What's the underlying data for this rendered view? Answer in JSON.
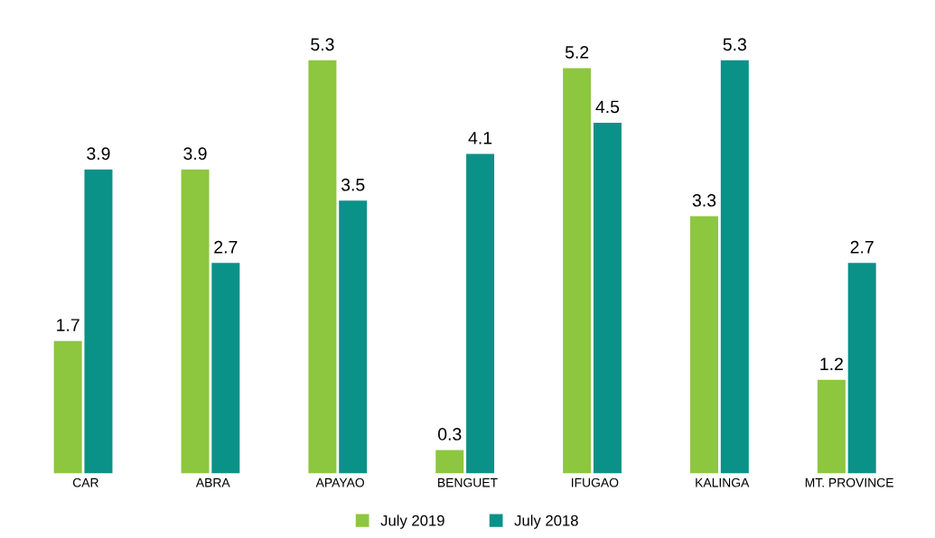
{
  "chart_data": {
    "type": "bar",
    "categories": [
      "CAR",
      "ABRA",
      "APAYAO",
      "BENGUET",
      "IFUGAO",
      "KALINGA",
      "MT. PROVINCE"
    ],
    "series": [
      {
        "name": "July 2019",
        "color": "#8dc63f",
        "values": [
          1.7,
          3.9,
          5.3,
          0.3,
          5.2,
          3.3,
          1.2
        ]
      },
      {
        "name": "July 2018",
        "color": "#0a9188",
        "values": [
          3.9,
          2.7,
          3.5,
          4.1,
          4.5,
          5.3,
          2.7
        ]
      }
    ],
    "data_labels": true,
    "legend": "bottom",
    "grid": false
  }
}
